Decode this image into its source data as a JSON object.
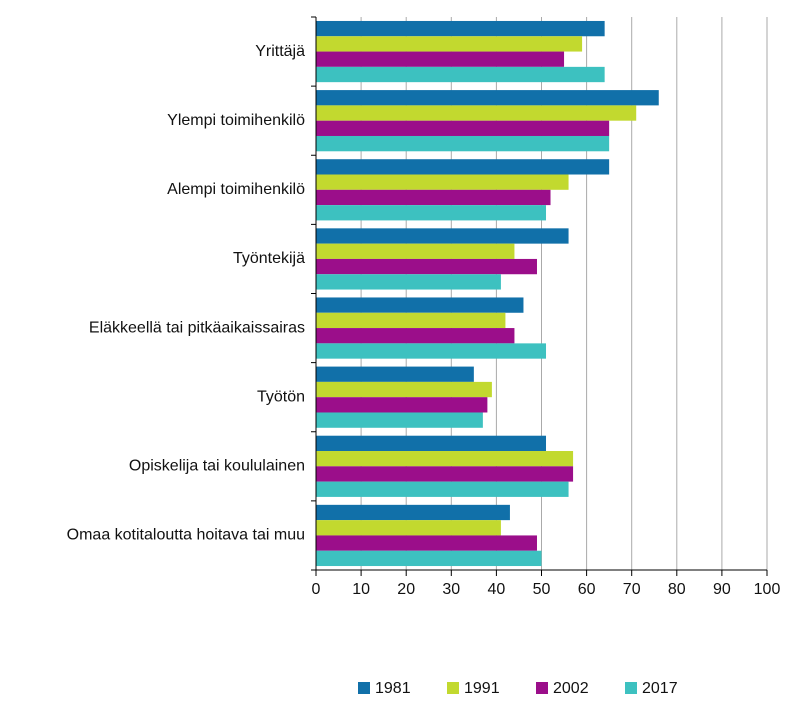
{
  "chart_data": {
    "type": "bar",
    "orientation": "horizontal",
    "categories": [
      "Yrittäjä",
      "Ylempi toimihenkilö",
      "Alempi toimihenkilö",
      "Työntekijä",
      "Eläkkeellä tai pitkäaikaissairas",
      "Työtön",
      "Opiskelija tai koululainen",
      "Omaa kotitaloutta hoitava tai muu"
    ],
    "series": [
      {
        "name": "1981",
        "color": "#1170a9",
        "values": [
          64,
          76,
          65,
          56,
          46,
          35,
          51,
          43
        ]
      },
      {
        "name": "1991",
        "color": "#c2d92f",
        "values": [
          59,
          71,
          56,
          44,
          42,
          39,
          57,
          41
        ]
      },
      {
        "name": "2002",
        "color": "#9b0e8a",
        "values": [
          55,
          65,
          52,
          49,
          44,
          38,
          57,
          49
        ]
      },
      {
        "name": "2017",
        "color": "#3dc1c0",
        "values": [
          64,
          65,
          51,
          41,
          51,
          37,
          56,
          50
        ]
      }
    ],
    "xlim": [
      0,
      100
    ],
    "xticks": [
      0,
      10,
      20,
      30,
      40,
      50,
      60,
      70,
      80,
      90,
      100
    ],
    "grid": true,
    "legend": "bottom"
  }
}
